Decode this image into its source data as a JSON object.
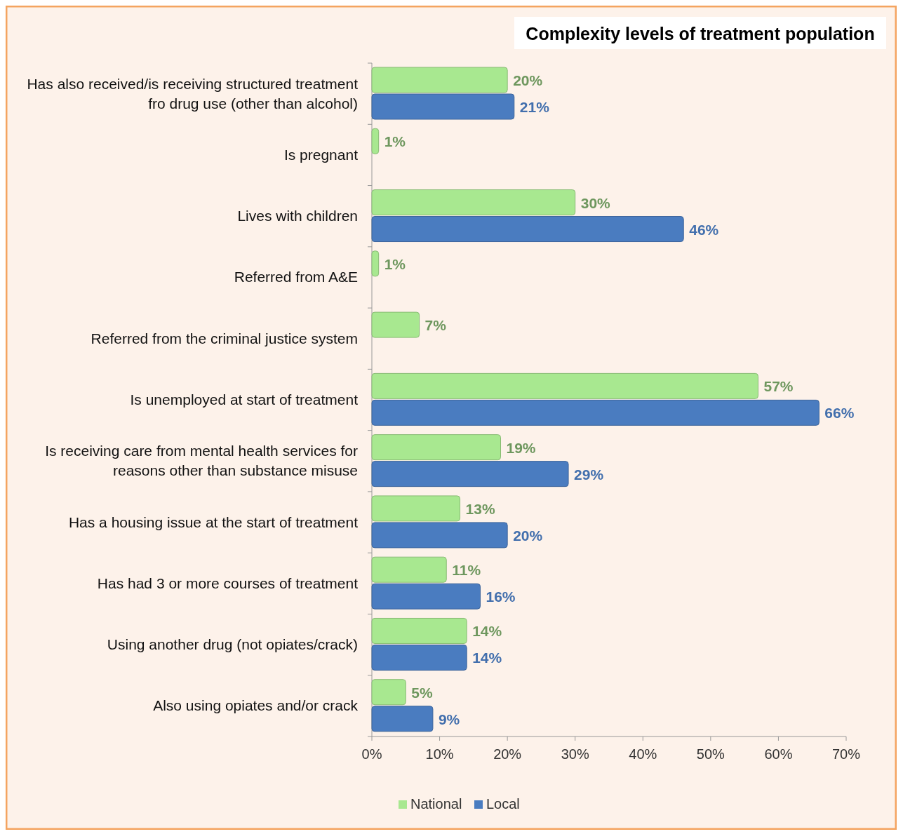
{
  "chart_data": {
    "type": "bar",
    "orientation": "horizontal",
    "title": "Complexity levels of treatment population",
    "categories": [
      "Has also received/is receiving structured treatment fro drug use (other than alcohol)",
      "Is pregnant",
      "Lives with children",
      "Referred from A&E",
      "Referred from the criminal justice system",
      "Is unemployed at start of treatment",
      "Is receiving care from mental health services for reasons other than substance misuse",
      "Has a housing issue at the start of treatment",
      "Has had 3 or more courses of treatment",
      "Using another drug (not opiates/crack)",
      "Also using opiates and/or crack"
    ],
    "series": [
      {
        "name": "National",
        "color": "#a8e890",
        "values": [
          20,
          1,
          30,
          1,
          7,
          57,
          19,
          13,
          11,
          14,
          5
        ],
        "value_labels": [
          "20%",
          "1%",
          "30%",
          "1%",
          "7%",
          "57%",
          "19%",
          "13%",
          "11%",
          "14%",
          "5%"
        ]
      },
      {
        "name": "Local",
        "color": "#4a7cc0",
        "values": [
          21,
          null,
          46,
          null,
          null,
          66,
          29,
          20,
          16,
          14,
          9
        ],
        "value_labels": [
          "21%",
          null,
          "46%",
          null,
          null,
          "66%",
          "29%",
          "20%",
          "16%",
          "14%",
          "9%"
        ]
      }
    ],
    "xlim": [
      0,
      70
    ],
    "xticks": [
      {
        "value": 0,
        "label": "0%"
      },
      {
        "value": 10,
        "label": "10%"
      },
      {
        "value": 20,
        "label": "20%"
      },
      {
        "value": 30,
        "label": "30%"
      },
      {
        "value": 40,
        "label": "40%"
      },
      {
        "value": 50,
        "label": "50%"
      },
      {
        "value": 60,
        "label": "60%"
      },
      {
        "value": 70,
        "label": "70%"
      }
    ],
    "legend": "bottom"
  }
}
